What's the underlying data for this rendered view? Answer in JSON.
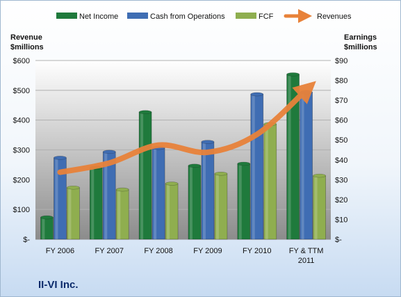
{
  "chart_data": {
    "type": "bar",
    "brand_label": "II-VI Inc.",
    "categories": [
      "FY 2006",
      "FY 2007",
      "FY 2008",
      "FY 2009",
      "FY 2010",
      "FY & TTM 2011"
    ],
    "series": [
      {
        "name": "Net Income",
        "axis": "right",
        "values": [
          11,
          36,
          64,
          37,
          38,
          83
        ],
        "color": "#1f7a3c"
      },
      {
        "name": "Cash from Operations",
        "axis": "right",
        "values": [
          41,
          44,
          46,
          49,
          73,
          74
        ],
        "color": "#3f6db3"
      },
      {
        "name": "FCF",
        "axis": "right",
        "values": [
          26,
          25,
          28,
          33,
          58,
          32
        ],
        "color": "#8fae4f"
      },
      {
        "name": "Revenues",
        "type": "line",
        "axis": "left",
        "values": [
          225,
          256,
          316,
          292,
          352,
          501
        ],
        "color": "#e8823a"
      }
    ],
    "left_axis": {
      "title_line1": "Revenue",
      "title_line2": "$millions",
      "ylim": [
        0,
        600
      ],
      "ticks": [
        0,
        100,
        200,
        300,
        400,
        500,
        600
      ],
      "tick_labels": [
        "$-",
        "$100",
        "$200",
        "$300",
        "$400",
        "$500",
        "$600"
      ]
    },
    "right_axis": {
      "title_line1": "Earnings",
      "title_line2": "$millions",
      "ylim": [
        0,
        90
      ],
      "ticks": [
        0,
        10,
        20,
        30,
        40,
        50,
        60,
        70,
        80,
        90
      ],
      "tick_labels": [
        "$-",
        "$10",
        "$20",
        "$30",
        "$40",
        "$50",
        "$60",
        "$70",
        "$80",
        "$90"
      ]
    },
    "grid": true,
    "legend_position": "top"
  }
}
